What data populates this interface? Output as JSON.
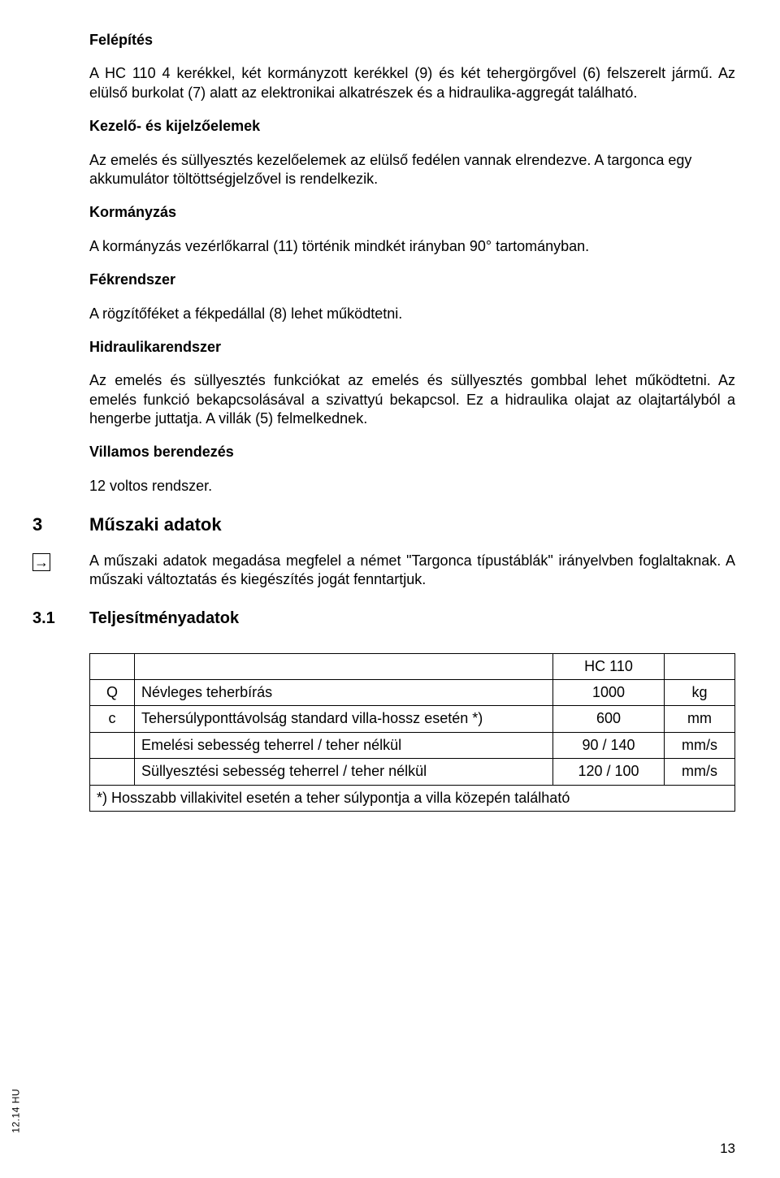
{
  "sections": {
    "felepites": {
      "title": "Felépítés",
      "text": "A HC 110 4 kerékkel, két kormányzott kerékkel (9) és két tehergörgővel (6) felszerelt jármű. Az elülső burkolat (7) alatt az elektronikai alkatrészek és a hidraulika-aggregát található."
    },
    "kezelo": {
      "title": "Kezelő- és kijelzőelemek",
      "text": "Az emelés és süllyesztés kezelőelemek az elülső fedélen vannak elrendezve. A targonca egy akkumulátor töltöttségjelzővel is rendelkezik."
    },
    "kormanyzas": {
      "title": "Kormányzás",
      "text": "A kormányzás vezérlőkarral (11) történik mindkét irányban 90° tartományban."
    },
    "fekrendszer": {
      "title": "Fékrendszer",
      "text": "A rögzítőféket a fékpedállal (8) lehet működtetni."
    },
    "hidraulika": {
      "title": "Hidraulikarendszer",
      "text": "Az emelés és süllyesztés funkciókat az emelés és süllyesztés gombbal lehet működtetni. Az emelés funkció bekapcsolásával a szivattyú bekapcsol. Ez a hidraulika olajat az olajtartályból a hengerbe juttatja. A villák (5) felmelkednek."
    },
    "villamos": {
      "title": "Villamos berendezés",
      "text": "12 voltos rendszer."
    }
  },
  "heading3": {
    "num": "3",
    "title": "Műszaki adatok",
    "note": "A műszaki adatok megadása megfelel a német \"Targonca típustáblák\" irányelvben foglaltaknak. A műszaki változtatás és kiegészítés jogát fenntartjuk."
  },
  "heading31": {
    "num": "3.1",
    "title": "Teljesítményadatok"
  },
  "table": {
    "header_model": "HC 110",
    "rows": [
      {
        "sym": "Q",
        "label": "Névleges teherbírás",
        "value": "1000",
        "unit": "kg"
      },
      {
        "sym": "c",
        "label": "Tehersúlyponttávolság standard villa-hossz esetén *)",
        "value": "600",
        "unit": "mm"
      },
      {
        "sym": "",
        "label": "Emelési sebesség teherrel / teher nélkül",
        "value": "90 / 140",
        "unit": "mm/s"
      },
      {
        "sym": "",
        "label": "Süllyesztési sebesség teherrel / teher nélkül",
        "value": "120 / 100",
        "unit": "mm/s"
      }
    ],
    "footnote": "*) Hosszabb villakivitel esetén a teher súlypontja a villa közepén található"
  },
  "side_label": "12.14 HU",
  "page_number": "13",
  "arrow_glyph": "→"
}
